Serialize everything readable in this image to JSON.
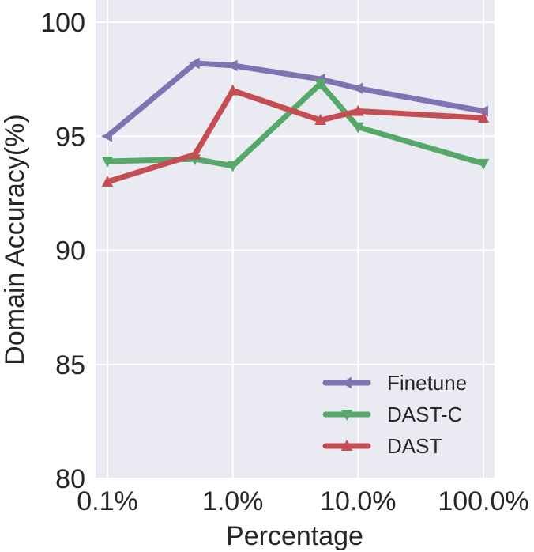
{
  "chart_data": {
    "type": "line",
    "xlabel": "Percentage",
    "ylabel": "Domain Accuracy(%)",
    "x_scale": "log",
    "xlim": [
      0.1,
      100.0
    ],
    "ylim": [
      80,
      100
    ],
    "x_ticks": [
      0.1,
      1.0,
      10.0,
      100.0
    ],
    "x_tick_labels": [
      "0.1%",
      "1.0%",
      "10.0%",
      "100.0%"
    ],
    "y_ticks": [
      80,
      85,
      90,
      95,
      100
    ],
    "y_tick_labels": [
      "80",
      "85",
      "90",
      "95",
      "100"
    ],
    "grid": true,
    "background": "#EAEAF2",
    "legend_position": "lower-right",
    "series": [
      {
        "name": "Finetune",
        "color": "#8172B2",
        "marker": "triangle-left",
        "x": [
          0.1,
          0.5,
          1.0,
          5.0,
          10.0,
          100.0
        ],
        "y": [
          95.0,
          98.2,
          98.1,
          97.5,
          97.1,
          96.1
        ]
      },
      {
        "name": "DAST-C",
        "color": "#55A868",
        "marker": "triangle-down",
        "x": [
          0.1,
          0.5,
          1.0,
          5.0,
          10.0,
          100.0
        ],
        "y": [
          93.9,
          94.0,
          93.7,
          97.3,
          95.4,
          93.8
        ]
      },
      {
        "name": "DAST",
        "color": "#C44E52",
        "marker": "triangle-up",
        "x": [
          0.1,
          0.5,
          1.0,
          5.0,
          10.0,
          100.0
        ],
        "y": [
          93.0,
          94.2,
          97.0,
          95.7,
          96.1,
          95.8
        ]
      }
    ]
  }
}
